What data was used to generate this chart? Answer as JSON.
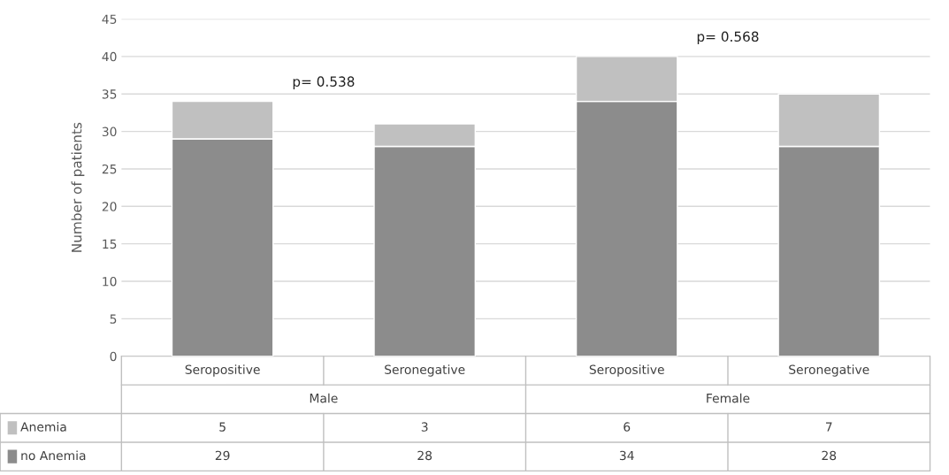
{
  "chart_data": {
    "type": "bar",
    "stacked": true,
    "ylabel": "Number of patients",
    "categories": [
      "Seropositive",
      "Seronegative",
      "Seropositive",
      "Seronegative"
    ],
    "series": [
      {
        "name": "no Anemia",
        "color": "#8c8c8c",
        "values": [
          29,
          28,
          34,
          28
        ]
      },
      {
        "name": "Anemia",
        "color": "#c0c0c0",
        "values": [
          5,
          3,
          6,
          7
        ]
      }
    ],
    "ylim": [
      0,
      45
    ],
    "yticks": [
      0,
      5,
      10,
      15,
      20,
      25,
      30,
      35,
      40,
      45
    ],
    "grid": "y",
    "legend": "bottom",
    "data_labels": true,
    "annotations": [
      "p= 0.538",
      "p= 0.568",
      "Male",
      "Female"
    ]
  }
}
